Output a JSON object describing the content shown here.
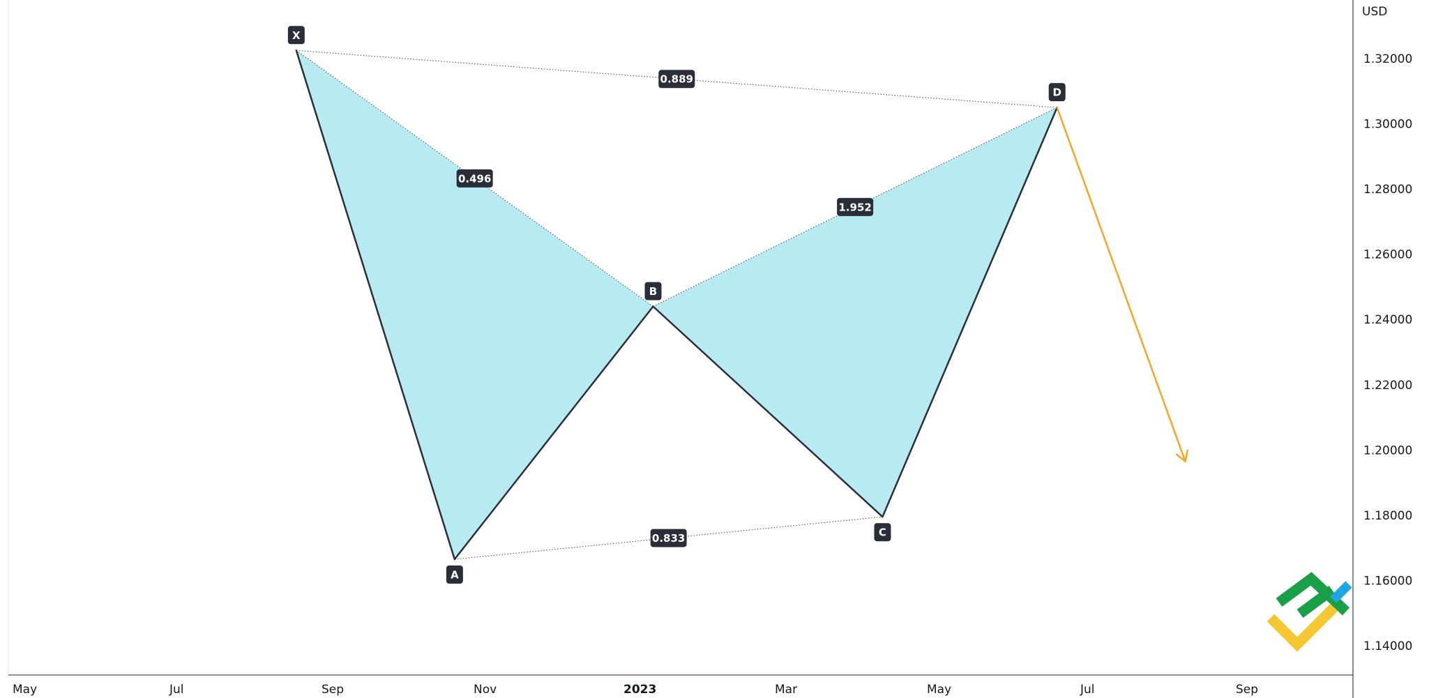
{
  "chart_data": {
    "type": "line",
    "title": "",
    "currency_label": "USD",
    "ylim": [
      1.13,
      1.33
    ],
    "y_ticks": [
      "1.32000",
      "1.30000",
      "1.28000",
      "1.26000",
      "1.24000",
      "1.22000",
      "1.20000",
      "1.18000",
      "1.16000",
      "1.14000"
    ],
    "x_ticks": [
      {
        "label": "May",
        "bold": false
      },
      {
        "label": "Jul",
        "bold": false
      },
      {
        "label": "Sep",
        "bold": false
      },
      {
        "label": "Nov",
        "bold": false
      },
      {
        "label": "2023",
        "bold": true
      },
      {
        "label": "Mar",
        "bold": false
      },
      {
        "label": "May",
        "bold": false
      },
      {
        "label": "Jul",
        "bold": false
      },
      {
        "label": "Sep",
        "bold": false
      }
    ],
    "pattern_points": [
      {
        "label": "X",
        "month_index": 3.52,
        "value": 1.3225,
        "label_pos": "above"
      },
      {
        "label": "A",
        "month_index": 5.57,
        "value": 1.1665,
        "label_pos": "below"
      },
      {
        "label": "B",
        "month_index": 8.14,
        "value": 1.244,
        "label_pos": "above"
      },
      {
        "label": "C",
        "month_index": 11.11,
        "value": 1.1795,
        "label_pos": "below"
      },
      {
        "label": "D",
        "month_index": 13.37,
        "value": 1.305,
        "label_pos": "above"
      }
    ],
    "ratios": [
      {
        "label": "0.889",
        "from": "X",
        "to": "D"
      },
      {
        "label": "0.496",
        "from": "X",
        "to": "B"
      },
      {
        "label": "1.952",
        "from": "B",
        "to": "D"
      },
      {
        "label": "0.833",
        "from": "A",
        "to": "C"
      }
    ],
    "projection": {
      "from": "D",
      "month_index": 15.03,
      "value": 1.1965
    },
    "colors": {
      "fill": "#b7ebf1",
      "line": "#2a2e39",
      "dotted": "#5d606b",
      "label_bg": "#2a2e39",
      "projection": "#f5a623",
      "axis_line": "#131722",
      "logo_green": "#1a9f49",
      "logo_yellow": "#f5c732",
      "logo_blue": "#1ea7e4"
    }
  }
}
